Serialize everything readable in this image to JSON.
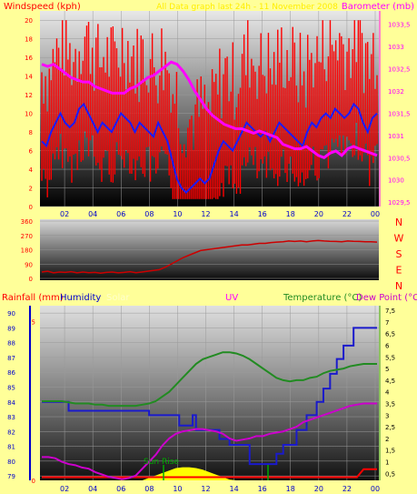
{
  "header": {
    "left_title": "Windspeed (kph)",
    "center_title": "All Data graph last 24h - 11 November 2008",
    "right_title": "Barometer (mb)"
  },
  "panel3_header": {
    "rainfall": "Rainfall (mm)",
    "humidity": "Humidity",
    "solar": "Solar",
    "uv": "UV",
    "temperature": "Temperature (°C)",
    "dewpoint": "Dew Point (°C)"
  },
  "annotation": {
    "sunrise": "Sun Rise"
  },
  "compass": [
    "N",
    "W",
    "S",
    "E",
    "N"
  ],
  "colors": {
    "background": "#ffff99",
    "wind_gust": "#ff0000",
    "wind_avg": "#1a1aff",
    "barometer": "#ff00ff",
    "direction": "#cc0000",
    "humidity": "#0000cc",
    "temperature": "#228b22",
    "dewpoint": "#cc00cc",
    "solar": "#ffff00",
    "rain": "#ff0000"
  },
  "chart_data": [
    {
      "type": "line",
      "name": "wind-barometer",
      "x_ticks": [
        "02",
        "04",
        "06",
        "08",
        "10",
        "12",
        "14",
        "16",
        "18",
        "20",
        "22",
        "00"
      ],
      "y_left": {
        "label": "Windspeed (kph)",
        "ticks": [
          "0",
          "2",
          "4",
          "6",
          "8",
          "10",
          "12",
          "14",
          "16",
          "18",
          "20"
        ],
        "ylim": [
          0,
          21
        ]
      },
      "y_right": {
        "label": "Barometer (mb)",
        "ticks": [
          "1029,5",
          "1030",
          "1030,5",
          "1031",
          "1031,5",
          "1032",
          "1032,5",
          "1033",
          "1033,5"
        ],
        "ylim": [
          1029.4,
          1033.8
        ]
      },
      "series": [
        {
          "name": "Windspeed",
          "axis": "left",
          "values": [
            7,
            6.5,
            8,
            9,
            10,
            9,
            8.5,
            9,
            10.5,
            11,
            10,
            9,
            8,
            9,
            8.5,
            8,
            9,
            10,
            9.5,
            9,
            8,
            9,
            8.5,
            8,
            7.5,
            9,
            8,
            7,
            5,
            3,
            2,
            1.5,
            2,
            2.5,
            3,
            2.5,
            3,
            4.5,
            6,
            7,
            6.5,
            6,
            7,
            8,
            9,
            8.5,
            8,
            7.5,
            8,
            7,
            8,
            9,
            8.5,
            8,
            7.5,
            7,
            6.5,
            8,
            9,
            8.5,
            9.5,
            10,
            9.5,
            10.5,
            10,
            9.5,
            10,
            11,
            10.5,
            9,
            8,
            9.5,
            10
          ]
        },
        {
          "name": "Barometer",
          "axis": "right",
          "values": [
            1032.6,
            1032.55,
            1032.6,
            1032.5,
            1032.4,
            1032.3,
            1032.25,
            1032.2,
            1032.2,
            1032.1,
            1032.05,
            1032.0,
            1031.95,
            1031.95,
            1031.95,
            1032.05,
            1032.1,
            1032.2,
            1032.3,
            1032.35,
            1032.45,
            1032.55,
            1032.65,
            1032.6,
            1032.45,
            1032.25,
            1032.0,
            1031.8,
            1031.6,
            1031.45,
            1031.35,
            1031.25,
            1031.2,
            1031.15,
            1031.15,
            1031.1,
            1031.05,
            1031.1,
            1031.05,
            1031.0,
            1030.95,
            1030.8,
            1030.75,
            1030.7,
            1030.7,
            1030.75,
            1030.65,
            1030.55,
            1030.5,
            1030.6,
            1030.65,
            1030.55,
            1030.7,
            1030.75,
            1030.7,
            1030.65,
            1030.6,
            1030.55
          ]
        }
      ],
      "gust_range": [
        6,
        20
      ]
    },
    {
      "type": "line",
      "name": "wind-direction",
      "y_ticks": [
        "0",
        "90",
        "180",
        "270",
        "360"
      ],
      "ylim": [
        0,
        360
      ],
      "series": [
        {
          "name": "Wind Direction",
          "values": [
            40,
            45,
            35,
            40,
            38,
            42,
            35,
            40,
            36,
            38,
            33,
            38,
            40,
            35,
            38,
            42,
            36,
            40,
            45,
            50,
            55,
            70,
            90,
            110,
            130,
            145,
            160,
            175,
            180,
            185,
            190,
            195,
            200,
            205,
            210,
            210,
            215,
            220,
            220,
            225,
            228,
            230,
            235,
            232,
            235,
            230,
            235,
            238,
            235,
            233,
            232,
            230,
            235,
            233,
            232,
            230,
            230,
            228
          ]
        }
      ]
    },
    {
      "type": "line",
      "name": "temperature-humidity",
      "y_humidity": {
        "label": "Humidity",
        "ticks": [
          "79",
          "80",
          "81",
          "82",
          "83",
          "84",
          "85",
          "86",
          "87",
          "88",
          "89",
          "90"
        ],
        "ylim": [
          78.7,
          90.5
        ]
      },
      "y_rain": {
        "label": "Rainfall (mm)",
        "ticks": [
          "0",
          "5"
        ],
        "ylim": [
          0,
          5.5
        ]
      },
      "y_temp": {
        "label": "Temperature (°C)",
        "ticks": [
          "0,5",
          "1",
          "1,5",
          "2",
          "2,5",
          "3",
          "3,5",
          "4",
          "4,5",
          "5",
          "5,5",
          "6",
          "6,5",
          "7",
          "7,5"
        ],
        "ylim": [
          0.2,
          7.7
        ]
      },
      "humidity_steps": [
        [
          0,
          84
        ],
        [
          0.08,
          84
        ],
        [
          0.08,
          83.4
        ],
        [
          0.32,
          83.4
        ],
        [
          0.32,
          83.1
        ],
        [
          0.41,
          83.1
        ],
        [
          0.41,
          82.4
        ],
        [
          0.45,
          82.4
        ],
        [
          0.45,
          83.1
        ],
        [
          0.46,
          83.1
        ],
        [
          0.46,
          82.1
        ],
        [
          0.53,
          82.1
        ],
        [
          0.53,
          81.5
        ],
        [
          0.56,
          81.5
        ],
        [
          0.56,
          81.1
        ],
        [
          0.62,
          81.1
        ],
        [
          0.62,
          79.8
        ],
        [
          0.7,
          79.8
        ],
        [
          0.7,
          80.5
        ],
        [
          0.72,
          80.5
        ],
        [
          0.72,
          81.1
        ],
        [
          0.76,
          81.1
        ],
        [
          0.76,
          82.1
        ],
        [
          0.79,
          82.1
        ],
        [
          0.79,
          83.1
        ],
        [
          0.82,
          83.1
        ],
        [
          0.82,
          84.0
        ],
        [
          0.84,
          84.0
        ],
        [
          0.84,
          84.9
        ],
        [
          0.86,
          84.9
        ],
        [
          0.86,
          85.9
        ],
        [
          0.88,
          85.9
        ],
        [
          0.88,
          86.9
        ],
        [
          0.9,
          86.9
        ],
        [
          0.9,
          87.8
        ],
        [
          0.93,
          87.8
        ],
        [
          0.93,
          89.0
        ],
        [
          1.0,
          89.0
        ]
      ],
      "series": [
        {
          "name": "Temperature",
          "values": [
            3.6,
            3.6,
            3.6,
            3.6,
            3.55,
            3.5,
            3.5,
            3.5,
            3.45,
            3.45,
            3.4,
            3.4,
            3.4,
            3.4,
            3.4,
            3.45,
            3.5,
            3.6,
            3.8,
            4.0,
            4.3,
            4.6,
            4.9,
            5.2,
            5.4,
            5.5,
            5.6,
            5.7,
            5.7,
            5.65,
            5.55,
            5.4,
            5.2,
            5.0,
            4.8,
            4.6,
            4.5,
            4.45,
            4.5,
            4.5,
            4.6,
            4.65,
            4.8,
            4.9,
            4.95,
            5.0,
            5.1,
            5.15,
            5.2,
            5.2,
            5.2
          ]
        },
        {
          "name": "Dew Point",
          "values": [
            1.2,
            1.2,
            1.15,
            1.0,
            0.9,
            0.85,
            0.75,
            0.7,
            0.55,
            0.45,
            0.35,
            0.3,
            0.25,
            0.3,
            0.4,
            0.7,
            1.0,
            1.3,
            1.7,
            2.0,
            2.2,
            2.3,
            2.35,
            2.4,
            2.4,
            2.35,
            2.3,
            2.2,
            2.0,
            1.9,
            1.95,
            2.0,
            2.1,
            2.1,
            2.2,
            2.25,
            2.3,
            2.4,
            2.5,
            2.7,
            2.8,
            2.9,
            3.0,
            3.1,
            3.2,
            3.3,
            3.4,
            3.45,
            3.5,
            3.5,
            3.5
          ]
        },
        {
          "name": "Rainfall",
          "values": [
            0.1,
            0.1,
            0.1,
            0.1,
            0.1,
            0.1,
            0.1,
            0.1,
            0.1,
            0.1,
            0.1,
            0.1,
            0.1,
            0.1,
            0.1,
            0.1,
            0.1,
            0.1,
            0.1,
            0.1,
            0.1,
            0.1,
            0.1,
            0.1,
            0.1,
            0.1,
            0.1,
            0.1,
            0.1,
            0.1,
            0.1,
            0.1,
            0.1,
            0.1,
            0.1,
            0.1,
            0.1,
            0.1,
            0.1,
            0.1,
            0.1,
            0.1,
            0.1,
            0.1,
            0.1,
            0.1,
            0.1,
            0.1,
            0.35,
            0.35,
            0.35
          ]
        },
        {
          "name": "Solar",
          "values": [
            0,
            0,
            0,
            0,
            0,
            0,
            0,
            0,
            0,
            0,
            0,
            0,
            0,
            0,
            0,
            0,
            0.3,
            0.6,
            0.9,
            1.2,
            1.5,
            1.6,
            1.6,
            1.5,
            1.3,
            1.0,
            0.7,
            0.4,
            0.1,
            0,
            0,
            0,
            0,
            0,
            0,
            0,
            0,
            0,
            0,
            0,
            0,
            0,
            0,
            0,
            0,
            0,
            0,
            0,
            0,
            0,
            0
          ]
        }
      ]
    }
  ]
}
